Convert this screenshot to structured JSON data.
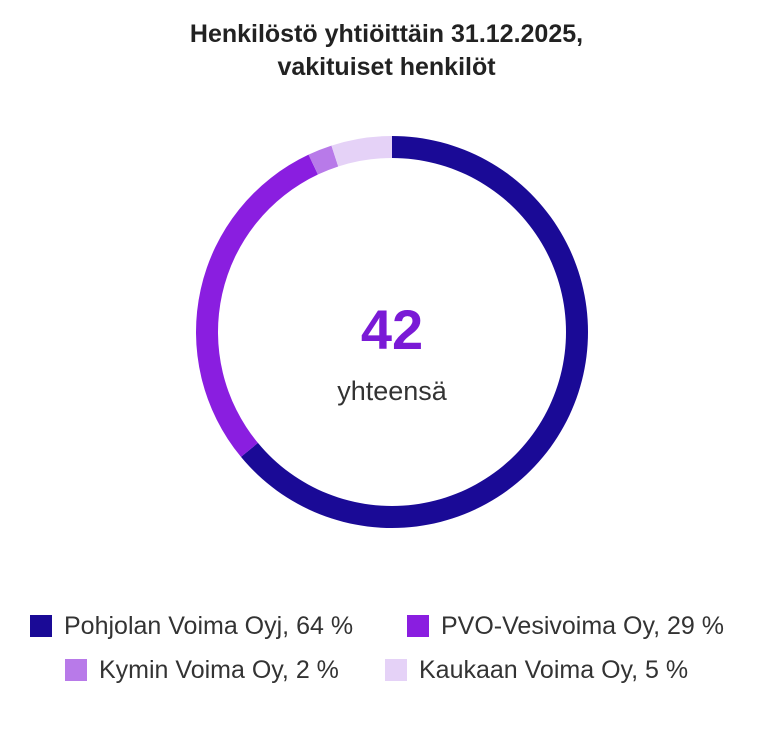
{
  "title": {
    "line1": "Henkilöstö yhtiöittäin 31.12.2025,",
    "line2": "vakituiset henkilöt"
  },
  "center": {
    "value": "42",
    "label": "yhteensä"
  },
  "chart_data": {
    "type": "pie",
    "variant": "donut",
    "title": "Henkilöstö yhtiöittäin 31.12.2025, vakituiset henkilöt",
    "total": 42,
    "total_label": "yhteensä",
    "legend_position": "bottom",
    "slices": [
      {
        "name": "Pohjolan Voima Oyj",
        "value": 64,
        "color": "#1a0a96"
      },
      {
        "name": "PVO-Vesivoima Oy",
        "value": 29,
        "color": "#8a1ee0"
      },
      {
        "name": "Kymin Voima Oy",
        "value": 2,
        "color": "#b87ae9"
      },
      {
        "name": "Kaukaan Voima Oy",
        "value": 5,
        "color": "#e5d2f7"
      }
    ]
  },
  "legend": [
    {
      "label": "Pohjolan Voima Oyj, 64 %",
      "color": "#1a0a96"
    },
    {
      "label": "PVO-Vesivoima Oy, 29 %",
      "color": "#8a1ee0"
    },
    {
      "label": "Kymin Voima Oy, 2 %",
      "color": "#b87ae9"
    },
    {
      "label": "Kaukaan Voima Oy, 5 %",
      "color": "#e5d2f7"
    }
  ],
  "colors": {
    "center_value": "#7a1ad6"
  }
}
